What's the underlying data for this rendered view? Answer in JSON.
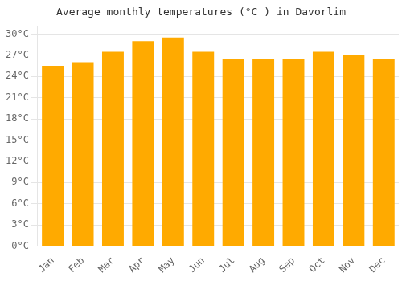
{
  "chart_data": {
    "type": "bar",
    "title": "Average monthly temperatures (°C ) in Davorlim",
    "categories": [
      "Jan",
      "Feb",
      "Mar",
      "Apr",
      "May",
      "Jun",
      "Jul",
      "Aug",
      "Sep",
      "Oct",
      "Nov",
      "Dec"
    ],
    "values": [
      25.5,
      26.0,
      27.5,
      29.0,
      29.5,
      27.5,
      26.5,
      26.5,
      26.5,
      27.5,
      27.0,
      26.5
    ],
    "color": "#FFAA00",
    "ylim": [
      0,
      31
    ],
    "yticks": [
      {
        "value": 0,
        "label": "0°C"
      },
      {
        "value": 3,
        "label": "3°C"
      },
      {
        "value": 6,
        "label": "6°C"
      },
      {
        "value": 9,
        "label": "9°C"
      },
      {
        "value": 12,
        "label": "12°C"
      },
      {
        "value": 15,
        "label": "15°C"
      },
      {
        "value": 18,
        "label": "18°C"
      },
      {
        "value": 21,
        "label": "21°C"
      },
      {
        "value": 24,
        "label": "24°C"
      },
      {
        "value": 27,
        "label": "27°C"
      },
      {
        "value": 30,
        "label": "30°C"
      }
    ],
    "grid": true
  }
}
